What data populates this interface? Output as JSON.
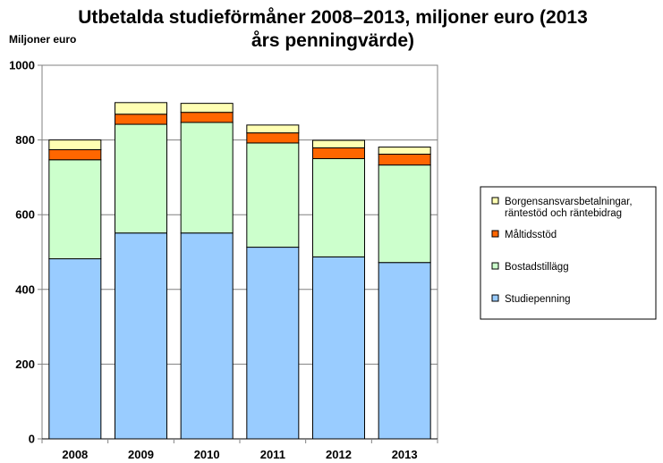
{
  "chart_data": {
    "type": "bar",
    "stacked": true,
    "title_lines": [
      "Utbetalda studieförmåner 2008–2013, miljoner euro (2013",
      "års penningvärde)"
    ],
    "ylabel": "Miljoner euro",
    "xlabel": "",
    "categories": [
      "2008",
      "2009",
      "2010",
      "2011",
      "2012",
      "2013"
    ],
    "ylim": [
      0,
      1000
    ],
    "yticks": [
      0,
      200,
      400,
      600,
      800,
      1000
    ],
    "grid": true,
    "legend_position": "right",
    "series": [
      {
        "name": "Studiepenning",
        "color": "#99ccff",
        "values": [
          482,
          551,
          551,
          513,
          487,
          472
        ]
      },
      {
        "name": "Bostadstillägg",
        "color": "#ccffcc",
        "values": [
          265,
          291,
          296,
          279,
          263,
          261
        ]
      },
      {
        "name": "Måltidsstöd",
        "color": "#ff6600",
        "values": [
          27,
          27,
          27,
          27,
          29,
          29
        ]
      },
      {
        "name": "Borgensansvarsbetalningar, räntestöd och räntebidrag",
        "legend_lines": [
          "Borgensansvarsbetalningar,",
          "räntestöd och räntebidrag"
        ],
        "color": "#ffffb3",
        "values": [
          26,
          31,
          24,
          21,
          20,
          19
        ]
      }
    ]
  }
}
